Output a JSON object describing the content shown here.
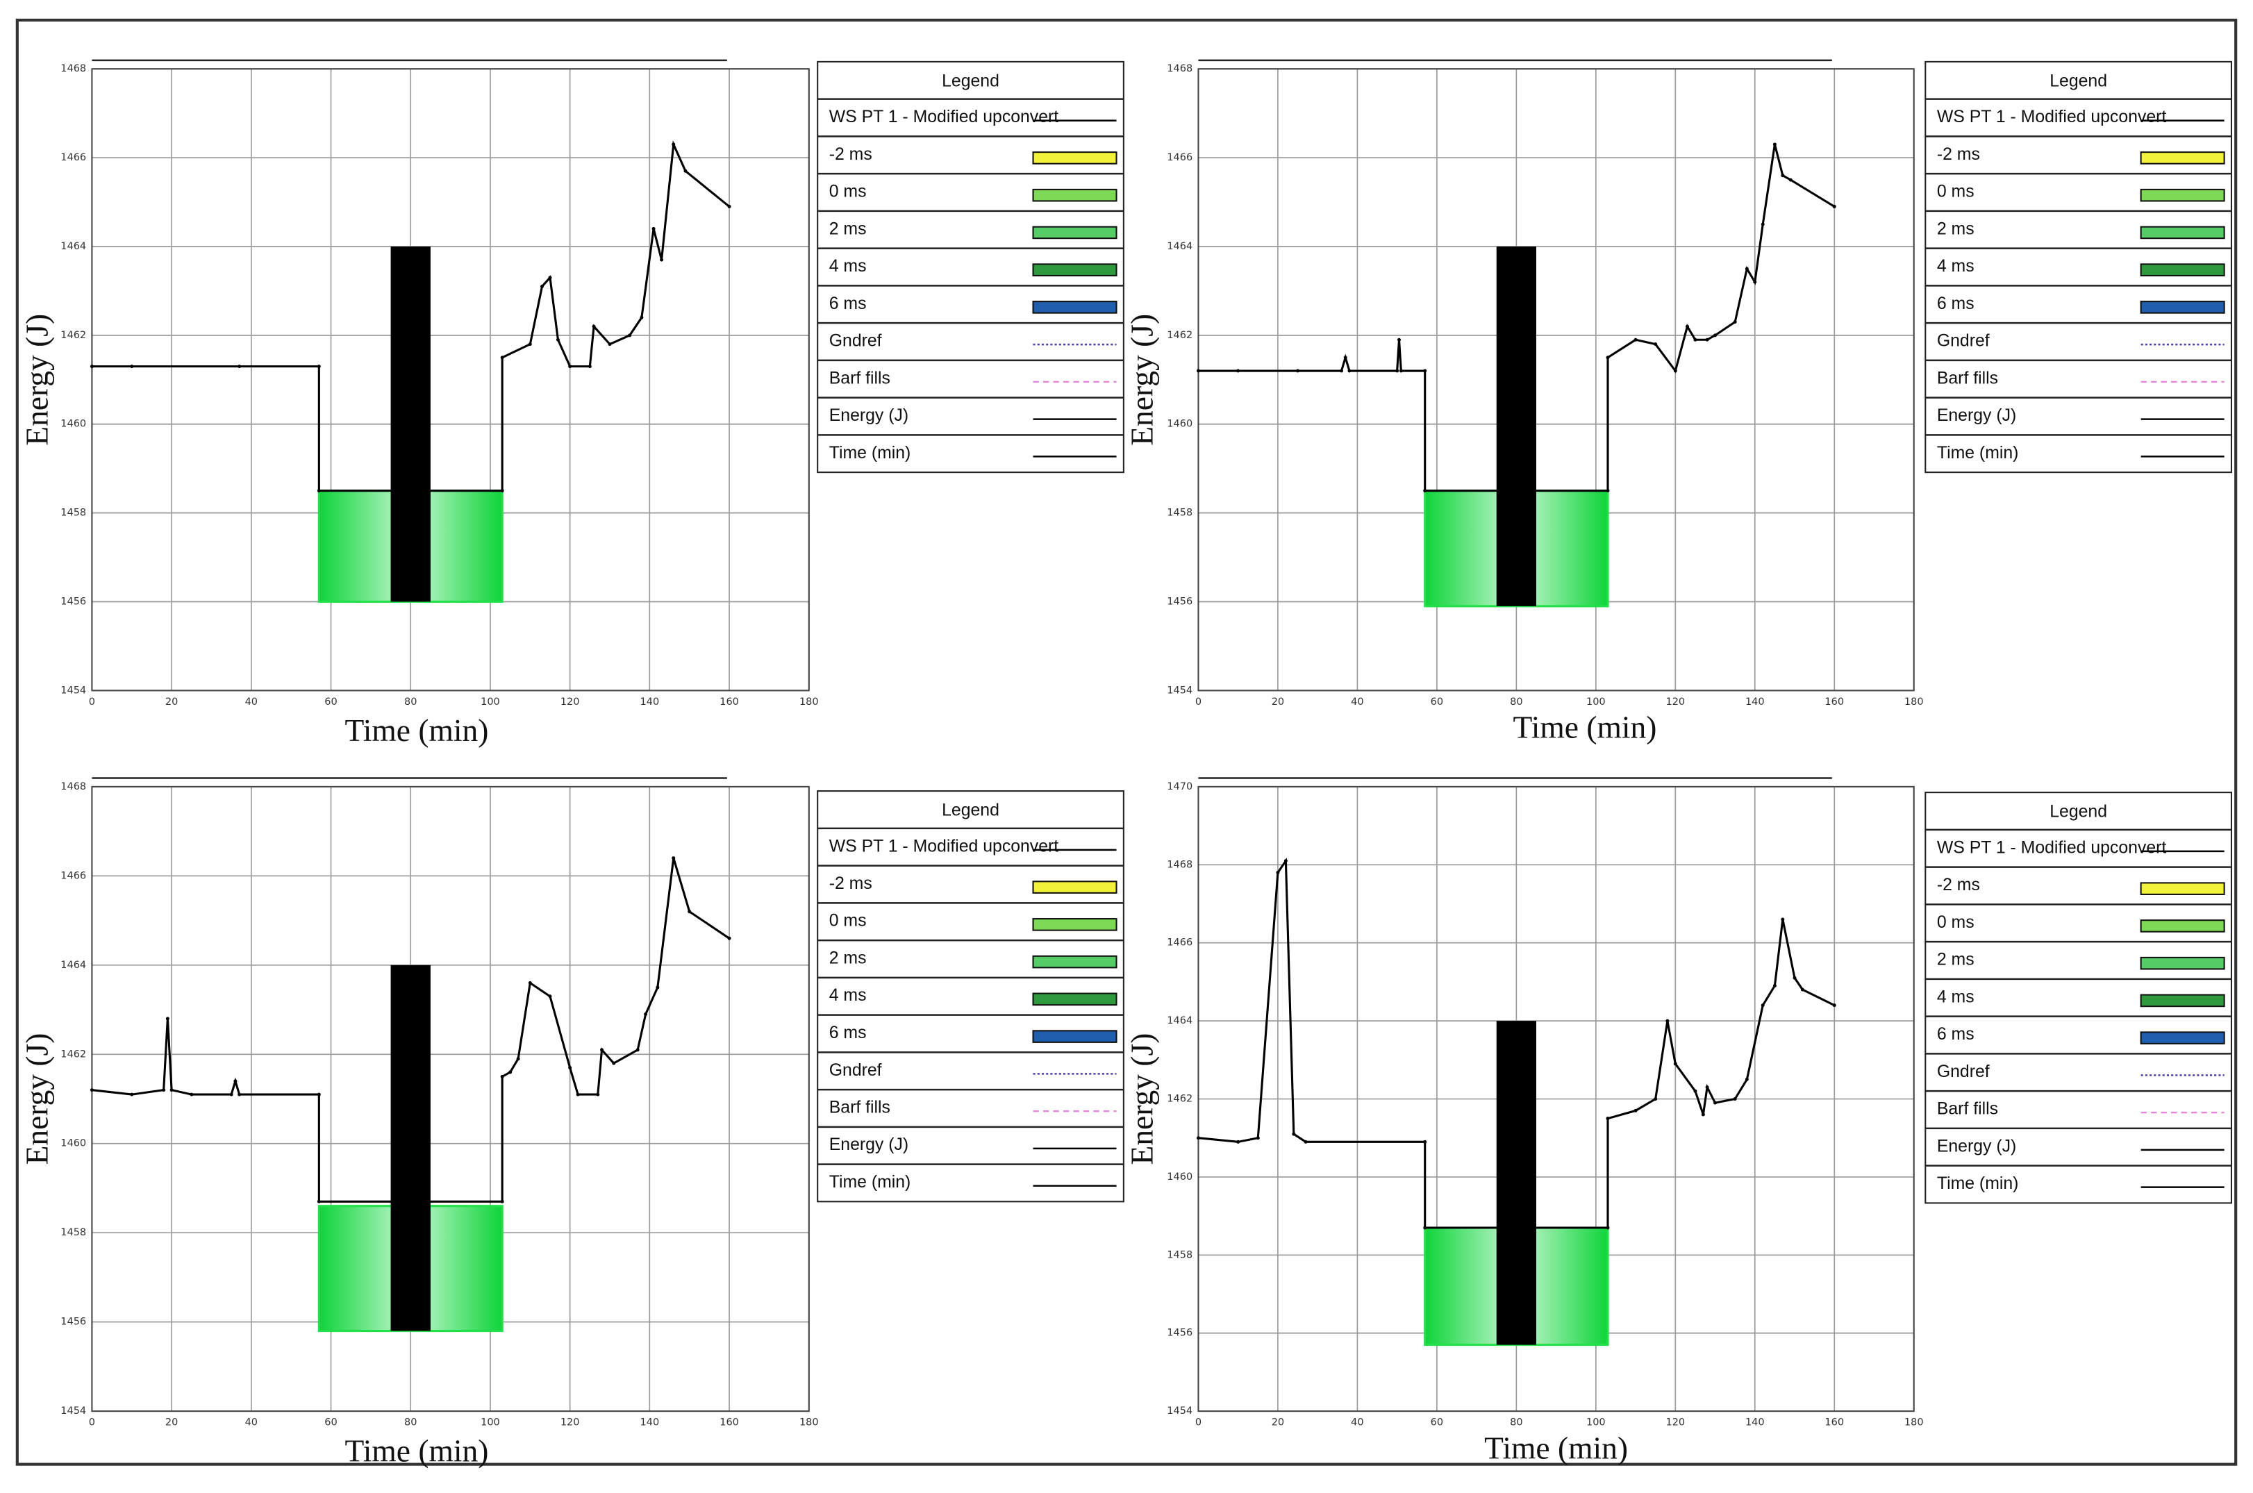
{
  "chart_data": [
    {
      "type": "line",
      "x_label": "Time (min)",
      "y_label": "Energy (J)",
      "xlim": [
        0,
        180
      ],
      "xticks": [
        0,
        20,
        40,
        60,
        80,
        100,
        120,
        140,
        160,
        180
      ],
      "ylim": [
        1454,
        1468
      ],
      "yticks": [
        1454,
        1456,
        1458,
        1460,
        1462,
        1464,
        1466,
        1468
      ],
      "grid": true,
      "fills": [
        {
          "x": [
            57,
            103
          ],
          "y": [
            1456,
            1458.5
          ],
          "color": "#22e04a"
        }
      ],
      "bars": [
        {
          "x": [
            75,
            85
          ],
          "y": [
            1456,
            1464
          ],
          "color": "#000000"
        }
      ],
      "series": [
        {
          "name": "WS PT 1 - Modified upconvert",
          "color": "#000000",
          "x": [
            0,
            10,
            37,
            57,
            57,
            103,
            103,
            110,
            113,
            115,
            117,
            120,
            125,
            126,
            130,
            135,
            138,
            141,
            143,
            146,
            149,
            160
          ],
          "values": [
            1461.3,
            1461.3,
            1461.3,
            1461.3,
            1458.5,
            1458.5,
            1461.5,
            1461.8,
            1463.1,
            1463.3,
            1461.9,
            1461.3,
            1461.3,
            1462.2,
            1461.8,
            1462.0,
            1462.4,
            1464.4,
            1463.7,
            1466.3,
            1465.7,
            1464.9
          ]
        }
      ],
      "legend": {
        "title": "Legend",
        "items": [
          {
            "name": "WS PT 1 - Modified upconvert",
            "color": "#000000",
            "style": "solid"
          },
          {
            "name": "-2 ms",
            "color": "#f2f23a",
            "style": "fill"
          },
          {
            "name": "0 ms",
            "color": "#7ed957",
            "style": "fill"
          },
          {
            "name": "2 ms",
            "color": "#55cc66",
            "style": "fill"
          },
          {
            "name": "4 ms",
            "color": "#2f9a3d",
            "style": "fill"
          },
          {
            "name": "6 ms",
            "color": "#1f5fae",
            "style": "fill"
          },
          {
            "name": "Gndref",
            "color": "#4b3fa8",
            "style": "dotted"
          },
          {
            "name": "Barf fills",
            "color": "#e28ad8",
            "style": "dashed"
          },
          {
            "name": "Energy (J)",
            "color": "#000000",
            "style": "solid"
          },
          {
            "name": "Time (min)",
            "color": "#000000",
            "style": "solid"
          }
        ]
      }
    },
    {
      "type": "line",
      "x_label": "Time (min)",
      "y_label": "Energy (J)",
      "xlim": [
        0,
        180
      ],
      "xticks": [
        0,
        20,
        40,
        60,
        80,
        100,
        120,
        140,
        160,
        180
      ],
      "ylim": [
        1454,
        1468
      ],
      "yticks": [
        1454,
        1456,
        1458,
        1460,
        1462,
        1464,
        1466,
        1468
      ],
      "grid": true,
      "fills": [
        {
          "x": [
            57,
            103
          ],
          "y": [
            1455.9,
            1458.5
          ],
          "color": "#22e04a"
        }
      ],
      "bars": [
        {
          "x": [
            75,
            85
          ],
          "y": [
            1455.9,
            1464
          ],
          "color": "#000000"
        }
      ],
      "series": [
        {
          "name": "WS PT 1 - Modified upconvert",
          "color": "#000000",
          "x": [
            0,
            10,
            25,
            36,
            37,
            38,
            50,
            50.5,
            51,
            57,
            57,
            103,
            103,
            110,
            115,
            120,
            123,
            125,
            128,
            130,
            135,
            138,
            140,
            142,
            145,
            147,
            149,
            160
          ],
          "values": [
            1461.2,
            1461.2,
            1461.2,
            1461.2,
            1461.5,
            1461.2,
            1461.2,
            1461.9,
            1461.2,
            1461.2,
            1458.5,
            1458.5,
            1461.5,
            1461.9,
            1461.8,
            1461.2,
            1462.2,
            1461.9,
            1461.9,
            1462.0,
            1462.3,
            1463.5,
            1463.2,
            1464.5,
            1466.3,
            1465.6,
            1465.5,
            1464.9
          ]
        }
      ],
      "legend": {
        "title": "Legend",
        "items": [
          {
            "name": "WS PT 1 - Modified upconvert",
            "color": "#000000",
            "style": "solid"
          },
          {
            "name": "-2 ms",
            "color": "#f2f23a",
            "style": "fill"
          },
          {
            "name": "0 ms",
            "color": "#7ed957",
            "style": "fill"
          },
          {
            "name": "2 ms",
            "color": "#55cc66",
            "style": "fill"
          },
          {
            "name": "4 ms",
            "color": "#2f9a3d",
            "style": "fill"
          },
          {
            "name": "6 ms",
            "color": "#1f5fae",
            "style": "fill"
          },
          {
            "name": "Gndref",
            "color": "#4b3fa8",
            "style": "dotted"
          },
          {
            "name": "Barf fills",
            "color": "#e28ad8",
            "style": "dashed"
          },
          {
            "name": "Energy (J)",
            "color": "#000000",
            "style": "solid"
          },
          {
            "name": "Time (min)",
            "color": "#000000",
            "style": "solid"
          }
        ]
      }
    },
    {
      "type": "line",
      "x_label": "Time (min)",
      "y_label": "Energy (J)",
      "xlim": [
        0,
        180
      ],
      "xticks": [
        0,
        20,
        40,
        60,
        80,
        100,
        120,
        140,
        160,
        180
      ],
      "ylim": [
        1454,
        1468
      ],
      "yticks": [
        1454,
        1456,
        1458,
        1460,
        1462,
        1464,
        1466,
        1468
      ],
      "grid": true,
      "fills": [
        {
          "x": [
            57,
            103
          ],
          "y": [
            1455.8,
            1458.6
          ],
          "color": "#22e04a"
        }
      ],
      "bars": [
        {
          "x": [
            75,
            85
          ],
          "y": [
            1455.8,
            1464
          ],
          "color": "#000000"
        }
      ],
      "series": [
        {
          "name": "WS PT 1 - Modified upconvert",
          "color": "#000000",
          "x": [
            0,
            10,
            18,
            19,
            20,
            25,
            35,
            36,
            37,
            57,
            57,
            103,
            103,
            105,
            107,
            110,
            115,
            120,
            122,
            127,
            128,
            131,
            137,
            139,
            142,
            146,
            150,
            160
          ],
          "values": [
            1461.2,
            1461.1,
            1461.2,
            1462.8,
            1461.2,
            1461.1,
            1461.1,
            1461.4,
            1461.1,
            1461.1,
            1458.7,
            1458.7,
            1461.5,
            1461.6,
            1461.9,
            1463.6,
            1463.3,
            1461.7,
            1461.1,
            1461.1,
            1462.1,
            1461.8,
            1462.1,
            1462.9,
            1463.5,
            1466.4,
            1465.2,
            1464.6
          ]
        }
      ],
      "legend": {
        "title": "Legend",
        "items": [
          {
            "name": "WS PT 1 - Modified upconvert",
            "color": "#000000",
            "style": "solid"
          },
          {
            "name": "-2 ms",
            "color": "#f2f23a",
            "style": "fill"
          },
          {
            "name": "0 ms",
            "color": "#7ed957",
            "style": "fill"
          },
          {
            "name": "2 ms",
            "color": "#55cc66",
            "style": "fill"
          },
          {
            "name": "4 ms",
            "color": "#2f9a3d",
            "style": "fill"
          },
          {
            "name": "6 ms",
            "color": "#1f5fae",
            "style": "fill"
          },
          {
            "name": "Gndref",
            "color": "#4b3fa8",
            "style": "dotted"
          },
          {
            "name": "Barf fills",
            "color": "#e28ad8",
            "style": "dashed"
          },
          {
            "name": "Energy (J)",
            "color": "#000000",
            "style": "solid"
          },
          {
            "name": "Time (min)",
            "color": "#000000",
            "style": "solid"
          }
        ]
      }
    },
    {
      "type": "line",
      "x_label": "Time (min)",
      "y_label": "Energy (J)",
      "xlim": [
        0,
        180
      ],
      "xticks": [
        0,
        20,
        40,
        60,
        80,
        100,
        120,
        140,
        160,
        180
      ],
      "ylim": [
        1454,
        1470
      ],
      "yticks": [
        1454,
        1456,
        1458,
        1460,
        1462,
        1464,
        1466,
        1468,
        1470
      ],
      "grid": true,
      "fills": [
        {
          "x": [
            57,
            103
          ],
          "y": [
            1455.7,
            1458.7
          ],
          "color": "#22e04a"
        }
      ],
      "bars": [
        {
          "x": [
            75,
            85
          ],
          "y": [
            1455.7,
            1464
          ],
          "color": "#000000"
        }
      ],
      "series": [
        {
          "name": "WS PT 1 - Modified upconvert",
          "color": "#000000",
          "x": [
            0,
            10,
            15,
            20,
            22,
            24,
            27,
            57,
            57,
            103,
            103,
            110,
            115,
            118,
            120,
            125,
            127,
            128,
            130,
            135,
            138,
            142,
            145,
            147,
            150,
            152,
            160
          ],
          "values": [
            1461.0,
            1460.9,
            1461.0,
            1467.8,
            1468.1,
            1461.1,
            1460.9,
            1460.9,
            1458.7,
            1458.7,
            1461.5,
            1461.7,
            1462.0,
            1464.0,
            1462.9,
            1462.2,
            1461.6,
            1462.3,
            1461.9,
            1462.0,
            1462.5,
            1464.4,
            1464.9,
            1466.6,
            1465.1,
            1464.8,
            1464.4
          ]
        }
      ],
      "legend": {
        "title": "Legend",
        "items": [
          {
            "name": "WS PT 1 - Modified upconvert",
            "color": "#000000",
            "style": "solid"
          },
          {
            "name": "-2 ms",
            "color": "#f2f23a",
            "style": "fill"
          },
          {
            "name": "0 ms",
            "color": "#7ed957",
            "style": "fill"
          },
          {
            "name": "2 ms",
            "color": "#55cc66",
            "style": "fill"
          },
          {
            "name": "4 ms",
            "color": "#2f9a3d",
            "style": "fill"
          },
          {
            "name": "6 ms",
            "color": "#1f5fae",
            "style": "fill"
          },
          {
            "name": "Gndref",
            "color": "#4b3fa8",
            "style": "dotted"
          },
          {
            "name": "Barf fills",
            "color": "#e28ad8",
            "style": "dashed"
          },
          {
            "name": "Energy (J)",
            "color": "#000000",
            "style": "solid"
          },
          {
            "name": "Time (min)",
            "color": "#000000",
            "style": "solid"
          }
        ]
      }
    }
  ]
}
